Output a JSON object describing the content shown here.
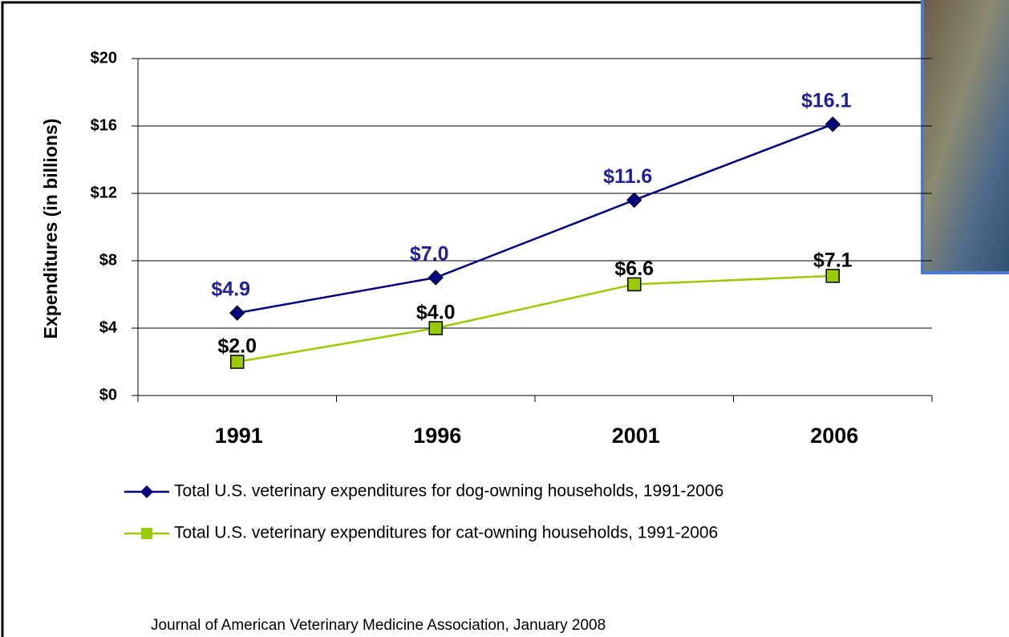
{
  "chart_data": {
    "type": "line",
    "y_label": "Expenditures  (in billions)",
    "categories": [
      "1991",
      "1996",
      "2001",
      "2006"
    ],
    "series": [
      {
        "name": "Total U.S. veterinary expenditures for dog-owning households, 1991-2006",
        "color": "#000080",
        "values": [
          4.9,
          7.0,
          11.6,
          16.1
        ],
        "value_labels": [
          "$4.9",
          "$7.0",
          "$11.6",
          "$16.1"
        ]
      },
      {
        "name": "Total U.S. veterinary expenditures for cat-owning households, 1991-2006",
        "color": "#99cc00",
        "values": [
          2.0,
          4.0,
          6.6,
          7.1
        ],
        "value_labels": [
          "$2.0",
          "$4.0",
          "$6.6",
          "$7.1"
        ]
      }
    ],
    "ylim": [
      0,
      20
    ],
    "yticks": [
      {
        "value": 0,
        "label": "$0"
      },
      {
        "value": 4,
        "label": "$4"
      },
      {
        "value": 8,
        "label": "$8"
      },
      {
        "value": 12,
        "label": "$12"
      },
      {
        "value": 16,
        "label": "$16"
      },
      {
        "value": 20,
        "label": "$20"
      }
    ],
    "grid": true,
    "source": "Journal of American Veterinary Medicine Association, January 2008"
  }
}
